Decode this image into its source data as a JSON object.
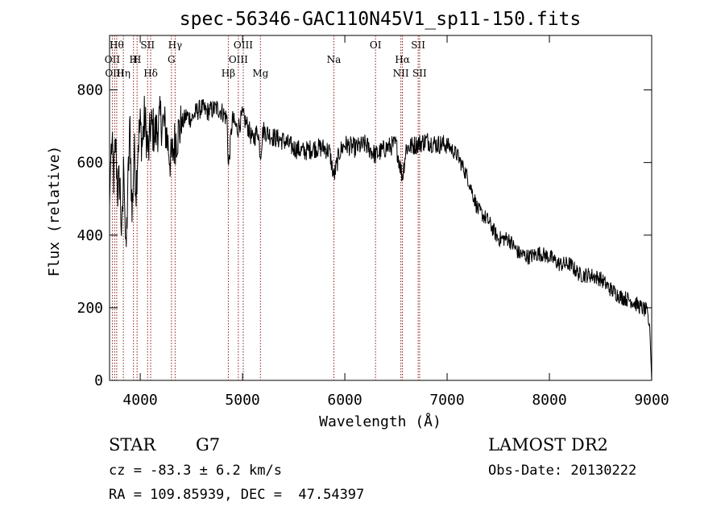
{
  "chart_data": {
    "type": "line",
    "title": "spec-56346-GAC110N45V1_sp11-150.fits",
    "xlabel": "Wavelength (Å)",
    "ylabel": "Flux (relative)",
    "xlim": [
      3700,
      9000
    ],
    "ylim": [
      0,
      950
    ],
    "x_ticks": [
      4000,
      5000,
      6000,
      7000,
      8000,
      9000
    ],
    "x_tick_labels": [
      "4000",
      "5000",
      "6000",
      "7000",
      "8000",
      "9000"
    ],
    "y_ticks": [
      0,
      200,
      400,
      600,
      800
    ],
    "y_tick_labels": [
      "0",
      "200",
      "400",
      "600",
      "800"
    ],
    "grid": false,
    "line_color": "#000000",
    "marker_color": "#8b1a1a",
    "series": [
      {
        "x": [
          3700,
          3710,
          3720,
          3740,
          3760,
          3780,
          3800,
          3820,
          3840,
          3860,
          3880,
          3900,
          3920,
          3940,
          3960,
          3980,
          4000,
          4020,
          4040,
          4060,
          4080,
          4100,
          4150,
          4200,
          4250,
          4300,
          4340,
          4400,
          4450,
          4500,
          4550,
          4600,
          4650,
          4700,
          4750,
          4800,
          4850,
          4861,
          4900,
          4950,
          5000,
          5050,
          5100,
          5150,
          5175,
          5200,
          5300,
          5400,
          5500,
          5600,
          5700,
          5800,
          5850,
          5893,
          5950,
          6000,
          6100,
          6200,
          6300,
          6400,
          6500,
          6563,
          6600,
          6700,
          6800,
          6900,
          7000,
          7100,
          7200,
          7300,
          7400,
          7500,
          7600,
          7700,
          7800,
          7900,
          8000,
          8100,
          8200,
          8300,
          8400,
          8500,
          8600,
          8700,
          8800,
          8900,
          8950,
          8980,
          9000
        ],
        "y": [
          480,
          600,
          650,
          560,
          650,
          520,
          560,
          380,
          620,
          330,
          540,
          700,
          450,
          640,
          530,
          660,
          700,
          650,
          720,
          680,
          620,
          700,
          680,
          720,
          690,
          600,
          660,
          700,
          730,
          720,
          740,
          750,
          740,
          745,
          750,
          740,
          720,
          580,
          720,
          690,
          730,
          700,
          660,
          690,
          620,
          690,
          670,
          660,
          640,
          630,
          640,
          640,
          630,
          560,
          630,
          650,
          640,
          650,
          620,
          640,
          650,
          560,
          640,
          650,
          660,
          650,
          650,
          620,
          560,
          470,
          440,
          390,
          390,
          350,
          340,
          350,
          340,
          320,
          320,
          290,
          290,
          280,
          250,
          230,
          220,
          200,
          190,
          150,
          0
        ]
      }
    ],
    "line_markers": [
      {
        "wavelength": 3727,
        "label": "OII",
        "row": 2
      },
      {
        "wavelength": 3750,
        "label": "OIII",
        "row": 3
      },
      {
        "wavelength": 3770,
        "label": "Hθ",
        "row": 1
      },
      {
        "wavelength": 3835,
        "label": "Hη",
        "row": 3
      },
      {
        "wavelength": 3934,
        "label": "H",
        "row": 2
      },
      {
        "wavelength": 3969,
        "label": "H",
        "row": 2
      },
      {
        "wavelength": 4072,
        "label": "SII",
        "row": 1
      },
      {
        "wavelength": 4102,
        "label": "Hδ",
        "row": 3
      },
      {
        "wavelength": 4305,
        "label": "G",
        "row": 2
      },
      {
        "wavelength": 4341,
        "label": "Hγ",
        "row": 1
      },
      {
        "wavelength": 4861,
        "label": "Hβ",
        "row": 3
      },
      {
        "wavelength": 4959,
        "label": "OIII",
        "row": 2
      },
      {
        "wavelength": 5007,
        "label": "OIII",
        "row": 1
      },
      {
        "wavelength": 5175,
        "label": "Mg",
        "row": 3
      },
      {
        "wavelength": 5893,
        "label": "Na",
        "row": 2
      },
      {
        "wavelength": 6300,
        "label": "OI",
        "row": 1
      },
      {
        "wavelength": 6548,
        "label": "NII",
        "row": 3
      },
      {
        "wavelength": 6563,
        "label": "Hα",
        "row": 2
      },
      {
        "wavelength": 6717,
        "label": "SII",
        "row": 1
      },
      {
        "wavelength": 6731,
        "label": "SII",
        "row": 3
      }
    ]
  },
  "info": {
    "object_class": "STAR",
    "subclass": "G7",
    "survey": "LAMOST DR2",
    "redshift": "cz = -83.3 ± 6.2 km/s",
    "obs_date": "Obs-Date: 20130222",
    "coords": "RA = 109.85939, DEC =  47.54397"
  }
}
